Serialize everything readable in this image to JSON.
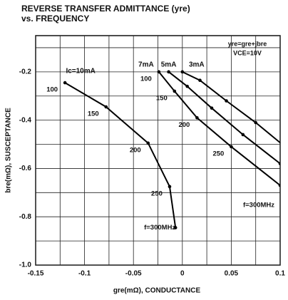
{
  "chart_data": {
    "type": "line",
    "title": "REVERSE TRANSFER ADMITTANCE (yre)",
    "subtitle": "vs. FREQUENCY",
    "xlabel": "gre(mΩ), CONDUCTANCE",
    "ylabel": "bre(mΩ), SUSCEPTANCE",
    "annotations": [
      "yre=gre+jbre",
      "VCE=10V"
    ],
    "xlim": [
      -0.15,
      0.1
    ],
    "ylim": [
      -1.0,
      -0.05
    ],
    "xticks": [
      -0.15,
      -0.1,
      -0.05,
      0,
      0.05,
      0.1
    ],
    "yticks": [
      {
        "value": -1.0,
        "label": "-1.0"
      },
      -0.8,
      -0.6,
      -0.4,
      -0.2
    ],
    "minor_xgrid": [
      -0.125,
      -0.075,
      -0.025,
      0.025,
      0.075
    ],
    "minor_ygrid": [
      -0.9,
      -0.7,
      -0.5,
      -0.3,
      -0.1
    ],
    "grid": true,
    "series": [
      {
        "name": "Ic=10mA",
        "color": "#000000",
        "x": [
          -0.12,
          -0.078,
          -0.035,
          -0.013,
          -0.007
        ],
        "values": [
          -0.245,
          -0.345,
          -0.495,
          -0.675,
          -0.845
        ],
        "labels": [
          "100",
          "150",
          "200",
          "250",
          "f=300MHz"
        ]
      },
      {
        "name": "7mA",
        "color": "#000000",
        "x": [
          -0.024,
          -0.008,
          0.015,
          0.05,
          0.1
        ],
        "values": [
          -0.2,
          -0.28,
          -0.39,
          -0.51,
          -0.67
        ],
        "labels": [
          "100",
          "150",
          "200",
          "250",
          "f=300MHz"
        ]
      },
      {
        "name": "5mA",
        "color": "#000000",
        "x": [
          -0.014,
          0.005,
          0.03,
          0.062,
          0.1
        ],
        "values": [
          -0.2,
          -0.26,
          -0.35,
          -0.46,
          -0.58
        ]
      },
      {
        "name": "3mA",
        "color": "#000000",
        "x": [
          0.0,
          0.018,
          0.045,
          0.075,
          0.108
        ],
        "values": [
          -0.2,
          -0.235,
          -0.32,
          -0.41,
          -0.52
        ]
      }
    ]
  }
}
